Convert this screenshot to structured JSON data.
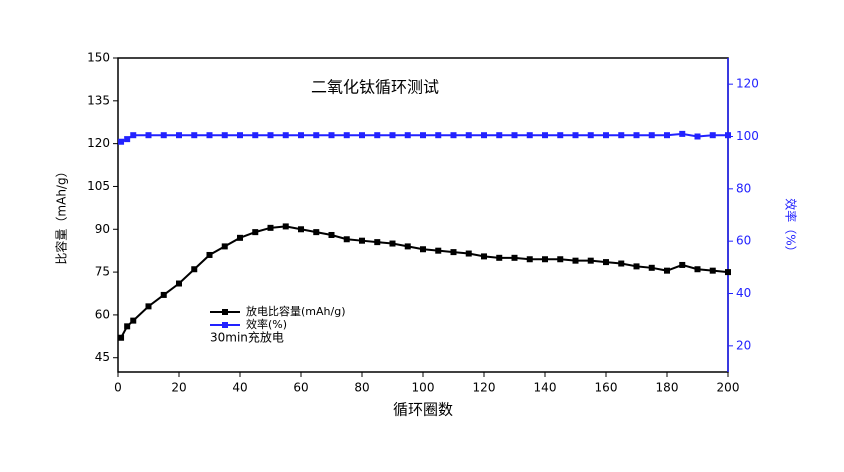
{
  "chart_data": {
    "type": "line",
    "title": "二氧化钛循环测试",
    "xlabel": "循环圈数",
    "ylabel": "比容量（mAh/g）",
    "y2label": "效率（%）",
    "annotation": "30min充放电",
    "x": [
      1,
      3,
      5,
      10,
      15,
      20,
      25,
      30,
      35,
      40,
      45,
      50,
      55,
      60,
      65,
      70,
      75,
      80,
      85,
      90,
      95,
      100,
      105,
      110,
      115,
      120,
      125,
      130,
      135,
      140,
      145,
      150,
      155,
      160,
      165,
      170,
      175,
      180,
      185,
      190,
      195,
      200
    ],
    "series": [
      {
        "name": "放电比容量(mAh/g)",
        "color": "#000000",
        "axis": "y",
        "values": [
          52,
          56,
          58,
          63,
          67,
          71,
          76,
          81,
          84,
          87,
          89,
          90.5,
          91,
          90,
          89,
          88,
          86.5,
          86,
          85.5,
          85,
          84,
          83,
          82.5,
          82,
          81.5,
          80.5,
          80,
          80,
          79.5,
          79.5,
          79.5,
          79,
          79,
          78.5,
          78,
          77,
          76.5,
          75.5,
          77.5,
          76,
          75.5,
          75
        ]
      },
      {
        "name": "效率(%)",
        "color": "#2222ff",
        "axis": "y2",
        "values": [
          98,
          99,
          100.5,
          100.5,
          100.5,
          100.5,
          100.5,
          100.5,
          100.5,
          100.5,
          100.5,
          100.5,
          100.5,
          100.5,
          100.5,
          100.5,
          100.5,
          100.5,
          100.5,
          100.5,
          100.5,
          100.5,
          100.5,
          100.5,
          100.5,
          100.5,
          100.5,
          100.5,
          100.5,
          100.5,
          100.5,
          100.5,
          100.5,
          100.5,
          100.5,
          100.5,
          100.5,
          100.5,
          101,
          100,
          100.5,
          100.5
        ]
      }
    ],
    "xlim": [
      0,
      200
    ],
    "xticks": [
      0,
      20,
      40,
      60,
      80,
      100,
      120,
      140,
      160,
      180,
      200
    ],
    "ylim": [
      40,
      150
    ],
    "yticks": [
      45,
      60,
      75,
      90,
      105,
      120,
      135,
      150
    ],
    "y2lim": [
      10,
      130
    ],
    "y2ticks": [
      20,
      40,
      60,
      80,
      100,
      120
    ],
    "y2color": "#2222ff"
  }
}
